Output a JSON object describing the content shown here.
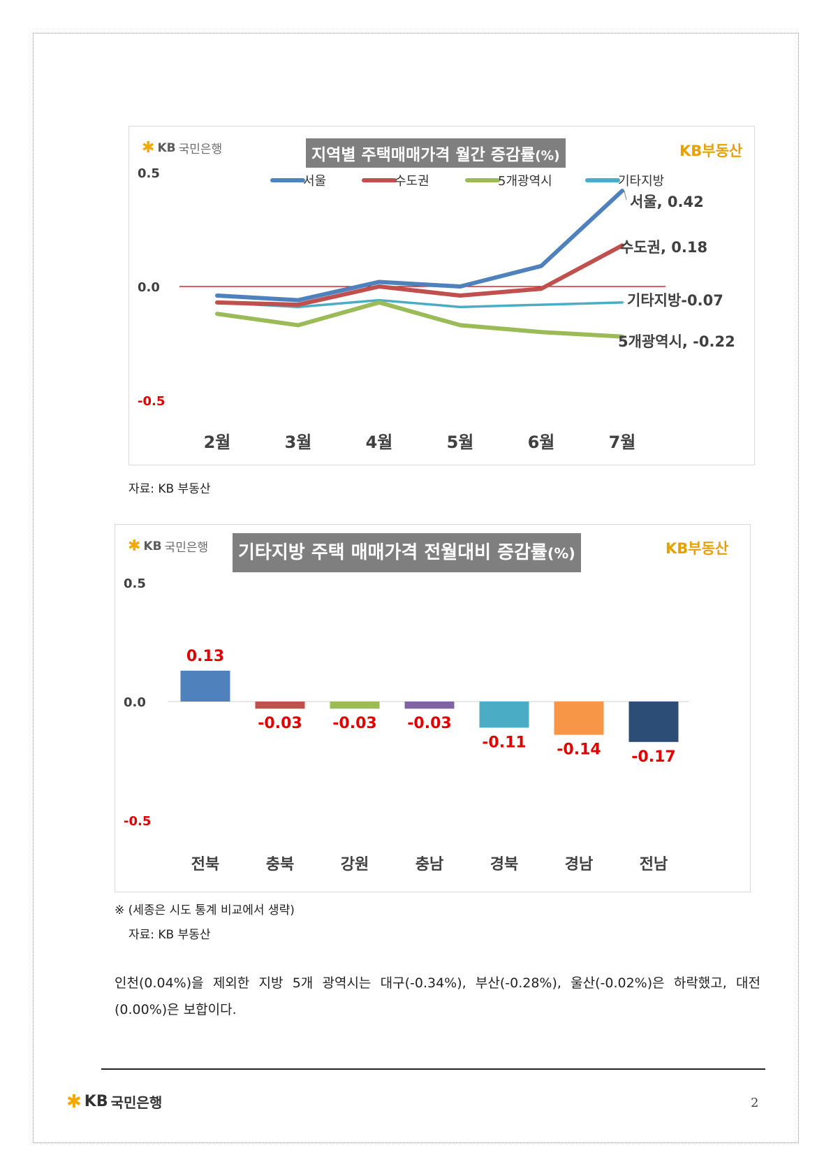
{
  "brand": {
    "bank_kb": "KB",
    "bank_name": "국민은행",
    "realty_name": "KB부동산"
  },
  "chart_data": [
    {
      "type": "line",
      "title": "지역별 주택매매가격 월간 증감률",
      "title_unit": "(%)",
      "categories": [
        "2월",
        "3월",
        "4월",
        "5월",
        "6월",
        "7월"
      ],
      "series": [
        {
          "name": "서울",
          "color": "#4f81bd",
          "values": [
            -0.04,
            -0.06,
            0.02,
            0.0,
            0.09,
            0.42
          ],
          "end_label": "서울, 0.42"
        },
        {
          "name": "수도권",
          "color": "#c0504d",
          "values": [
            -0.07,
            -0.08,
            0.0,
            -0.04,
            -0.01,
            0.18
          ],
          "end_label": "수도권, 0.18"
        },
        {
          "name": "5개광역시",
          "color": "#9bbb59",
          "values": [
            -0.12,
            -0.17,
            -0.07,
            -0.17,
            -0.2,
            -0.22
          ],
          "end_label": "5개광역시, -0.22"
        },
        {
          "name": "기타지방",
          "color": "#4bacc6",
          "values": [
            -0.07,
            -0.09,
            -0.06,
            -0.09,
            -0.08,
            -0.07
          ],
          "end_label": "기타지방-0.07"
        }
      ],
      "ylim": [
        -0.5,
        0.5
      ],
      "yticks": [
        "0.5",
        "0.0",
        "-0.5"
      ],
      "legend": "top",
      "zero_line_color": "#c00000"
    },
    {
      "type": "bar",
      "title": "기타지방 주택 매매가격 전월대비 증감률",
      "title_unit": "(%)",
      "categories": [
        "전북",
        "충북",
        "강원",
        "충남",
        "경북",
        "경남",
        "전남"
      ],
      "values": [
        0.13,
        -0.03,
        -0.03,
        -0.03,
        -0.11,
        -0.14,
        -0.17
      ],
      "value_labels": [
        "0.13",
        "-0.03",
        "-0.03",
        "-0.03",
        "-0.11",
        "-0.14",
        "-0.17"
      ],
      "colors": [
        "#4f81bd",
        "#c0504d",
        "#9bbb59",
        "#8064a2",
        "#4bacc6",
        "#f79646",
        "#2c4d75"
      ],
      "ylim": [
        -0.5,
        0.5
      ],
      "yticks": [
        "0.5",
        "0.0",
        "-0.5"
      ],
      "label_color": "#e00000"
    }
  ],
  "notes": {
    "source1": "자료: KB 부동산",
    "exclusion": "※ (세종은 시도 통계 비교에서 생략)",
    "source2": "자료: KB 부동산"
  },
  "body_text": "인천(0.04%)을 제외한 지방 5개 광역시는 대구(-0.34%), 부산(-0.28%), 울산(-0.02%)은 하락했고, 대전(0.00%)은 보합이다.",
  "page_number": "2"
}
